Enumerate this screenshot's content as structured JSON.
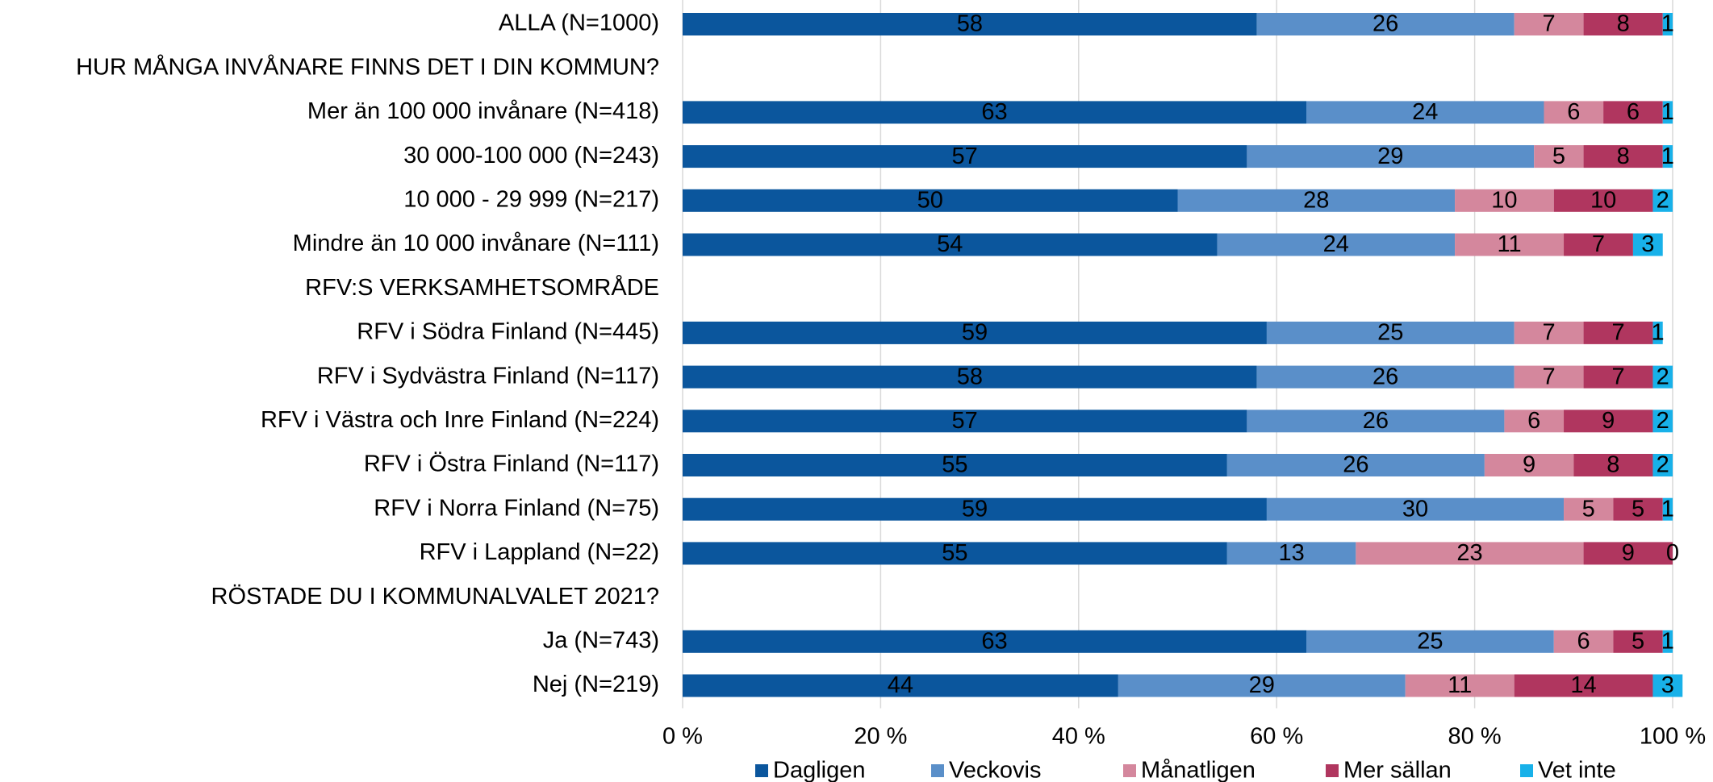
{
  "chart_data": {
    "type": "bar_stacked_horizontal",
    "categories": [
      "ALLA (N=1000)",
      "HUR MÅNGA INVÅNARE FINNS DET I DIN KOMMUN?",
      "Mer än 100 000 invånare (N=418)",
      "30 000-100 000 (N=243)",
      "10 000 - 29 999 (N=217)",
      "Mindre än 10 000 invånare  (N=111)",
      "RFV:S VERKSAMHETSOMRÅDE",
      "RFV i Södra Finland (N=445)",
      "RFV i Sydvästra Finland (N=117)",
      "RFV i Västra och Inre Finland (N=224)",
      "RFV i Östra Finland (N=117)",
      "RFV i Norra Finland (N=75)",
      "RFV i Lappland (N=22)",
      "RÖSTADE DU I KOMMUNALVALET 2021?",
      "Ja (N=743)",
      "Nej (N=219)"
    ],
    "series": [
      {
        "name": "Dagligen",
        "color": "#0b569d",
        "values": [
          58,
          null,
          63,
          57,
          50,
          54,
          null,
          59,
          58,
          57,
          55,
          59,
          55,
          null,
          63,
          44
        ]
      },
      {
        "name": "Veckovis",
        "color": "#5a8fc9",
        "values": [
          26,
          null,
          24,
          29,
          28,
          24,
          null,
          25,
          26,
          26,
          26,
          30,
          13,
          null,
          25,
          29
        ]
      },
      {
        "name": "Månatligen",
        "color": "#d4879d",
        "values": [
          7,
          null,
          6,
          5,
          10,
          11,
          null,
          7,
          7,
          6,
          9,
          5,
          23,
          null,
          6,
          11
        ]
      },
      {
        "name": "Mer sällan",
        "color": "#b0365f",
        "values": [
          8,
          null,
          6,
          8,
          10,
          7,
          null,
          7,
          7,
          9,
          8,
          5,
          9,
          null,
          5,
          14
        ]
      },
      {
        "name": "Vet inte",
        "color": "#18b1e9",
        "values": [
          1,
          null,
          1,
          1,
          2,
          3,
          null,
          1,
          2,
          2,
          2,
          1,
          0,
          null,
          1,
          3
        ]
      }
    ],
    "xlim": [
      0,
      100
    ],
    "xticks": [
      {
        "value": 0,
        "label": "0 %"
      },
      {
        "value": 20,
        "label": "20 %"
      },
      {
        "value": 40,
        "label": "40 %"
      },
      {
        "value": 60,
        "label": "60 %"
      },
      {
        "value": 80,
        "label": "80 %"
      },
      {
        "value": 100,
        "label": "100 %"
      }
    ],
    "grid": true,
    "legend": "bottom"
  }
}
